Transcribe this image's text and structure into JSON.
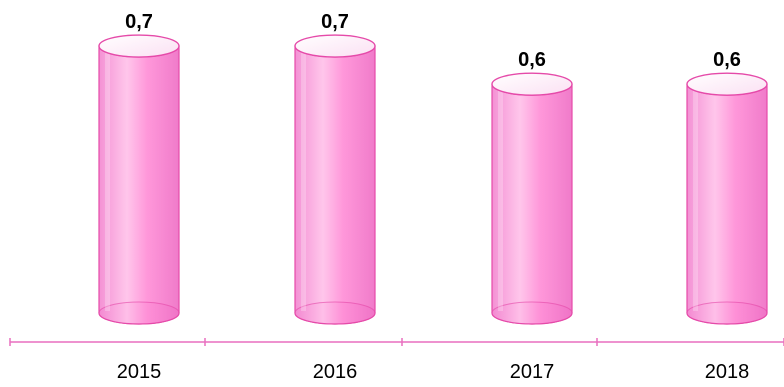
{
  "chart_data": {
    "type": "bar",
    "style": "3d-cylinder",
    "categories": [
      "2015",
      "2016",
      "2017",
      "2018"
    ],
    "values": [
      0.7,
      0.7,
      0.6,
      0.6
    ],
    "value_labels": [
      "0,7",
      "0,7",
      "0,6",
      "0,6"
    ],
    "title": "",
    "xlabel": "",
    "ylabel": "",
    "grid": false,
    "legend": "none",
    "colors": {
      "bar_fill": "#ff8fd6",
      "bar_light": "#ffd0ee",
      "bar_dark": "#f06ec4",
      "bar_edge": "#e54aa9",
      "axis": "#e86fbf"
    }
  }
}
